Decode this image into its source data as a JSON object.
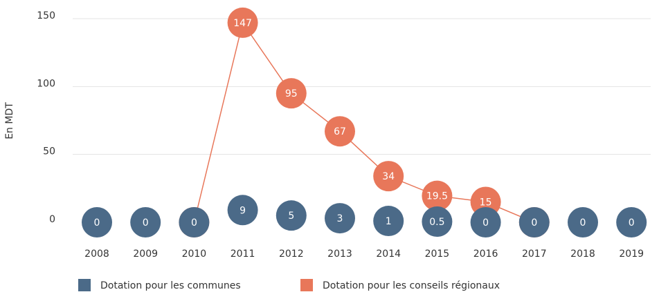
{
  "chart_data": {
    "type": "line",
    "y_label": "En MDT",
    "categories": [
      "2008",
      "2009",
      "2010",
      "2011",
      "2012",
      "2013",
      "2014",
      "2015",
      "2016",
      "2017",
      "2018",
      "2019"
    ],
    "series": [
      {
        "name": "Dotation pour les communes",
        "color": "#4b6a88",
        "line": false,
        "values": [
          0,
          0,
          0,
          9,
          5,
          3,
          1,
          0.5,
          0,
          0,
          0,
          0
        ]
      },
      {
        "name": "Dotation pour les conseils régionaux",
        "color": "#e8775a",
        "line": true,
        "values": [
          null,
          null,
          0,
          147,
          95,
          67,
          34,
          19.5,
          15,
          0,
          null,
          null
        ]
      }
    ],
    "ylim": [
      0,
      150
    ],
    "yticks": [
      0,
      50,
      100,
      150
    ],
    "grid": true,
    "legend": "bottom"
  }
}
